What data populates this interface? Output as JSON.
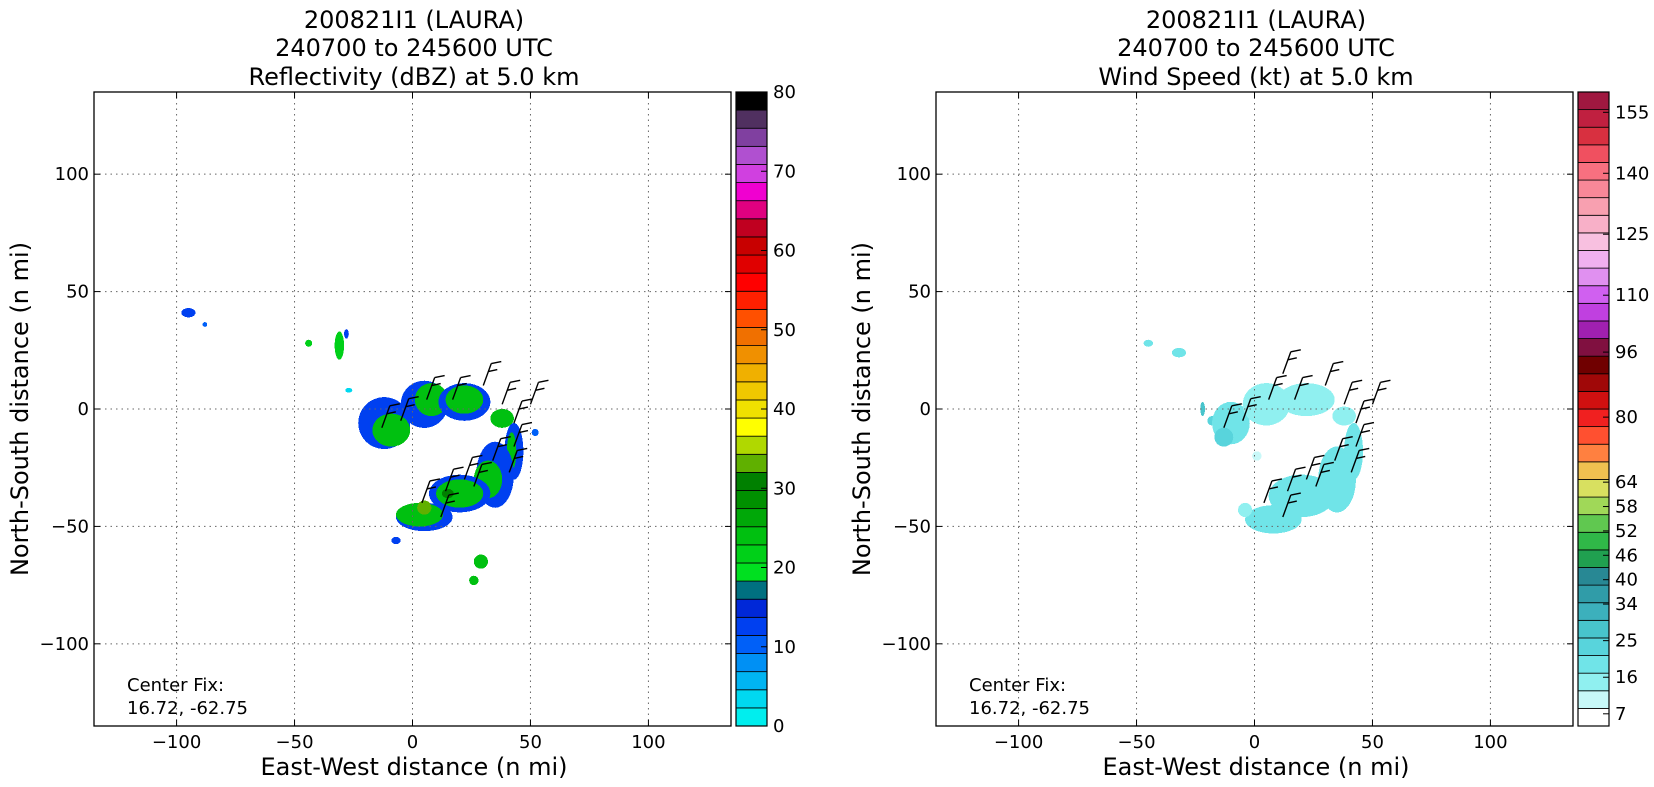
{
  "chart_data": [
    {
      "type": "heatmap",
      "title_lines": [
        "200821I1 (LAURA)",
        "240700 to 245600 UTC",
        "Reflectivity (dBZ) at 5.0 km"
      ],
      "xlabel": "East-West distance (n mi)",
      "ylabel": "North-South distance (n mi)",
      "xlim": [
        -135,
        135
      ],
      "ylim": [
        -135,
        135
      ],
      "xticks": [
        -100,
        -50,
        0,
        50,
        100
      ],
      "yticks": [
        -100,
        -50,
        0,
        50,
        100
      ],
      "grid": true,
      "annotation_lines": [
        "Center Fix:",
        "16.72, -62.75"
      ],
      "colorbar": {
        "min": 0,
        "max": 80,
        "tick_values": [
          0,
          10,
          20,
          30,
          40,
          50,
          60,
          70,
          80
        ],
        "tick_labels": [
          "0",
          "10",
          "20",
          "30",
          "40",
          "50",
          "60",
          "70",
          "80"
        ],
        "colors": [
          "#00eeee",
          "#00d8f0",
          "#00b4f2",
          "#0090f4",
          "#0060f8",
          "#0040f0",
          "#0028d8",
          "#007080",
          "#00e020",
          "#00d018",
          "#00c010",
          "#00a808",
          "#009000",
          "#008000",
          "#60b000",
          "#b0d800",
          "#ffff00",
          "#f0e000",
          "#f0c800",
          "#f0b000",
          "#f09000",
          "#f07000",
          "#ff5000",
          "#ff2000",
          "#ff0000",
          "#e00000",
          "#c80000",
          "#c00020",
          "#e00080",
          "#f000d0",
          "#d040e0",
          "#b050d0",
          "#8040a0",
          "#503060",
          "#000000"
        ]
      },
      "field_blobs": [
        {
          "x": -95,
          "y": 41,
          "rx": 3,
          "ry": 2,
          "v": 12
        },
        {
          "x": -88,
          "y": 36,
          "rx": 1,
          "ry": 1,
          "v": 11
        },
        {
          "x": -44,
          "y": 28,
          "rx": 1.5,
          "ry": 1.5,
          "v": 22
        },
        {
          "x": -31,
          "y": 27,
          "rx": 2,
          "ry": 6,
          "v": 22
        },
        {
          "x": -28,
          "y": 32,
          "rx": 1,
          "ry": 2,
          "v": 12
        },
        {
          "x": -27,
          "y": 8,
          "rx": 1.5,
          "ry": 1,
          "v": 4
        },
        {
          "x": -12,
          "y": -6,
          "rx": 11,
          "ry": 11,
          "v": 12
        },
        {
          "x": -9,
          "y": -9,
          "rx": 8,
          "ry": 7,
          "v": 24
        },
        {
          "x": 5,
          "y": 2,
          "rx": 10,
          "ry": 10,
          "v": 12
        },
        {
          "x": 8,
          "y": 4,
          "rx": 7,
          "ry": 7,
          "v": 24
        },
        {
          "x": 22,
          "y": 3,
          "rx": 11,
          "ry": 8,
          "v": 13
        },
        {
          "x": 22,
          "y": 4,
          "rx": 8,
          "ry": 6,
          "v": 24
        },
        {
          "x": 38,
          "y": -4,
          "rx": 5,
          "ry": 4,
          "v": 24
        },
        {
          "x": 43,
          "y": -18,
          "rx": 4,
          "ry": 12,
          "v": 12
        },
        {
          "x": 42,
          "y": -18,
          "rx": 2,
          "ry": 8,
          "v": 24
        },
        {
          "x": 52,
          "y": -10,
          "rx": 1.5,
          "ry": 1.5,
          "v": 10
        },
        {
          "x": 35,
          "y": -28,
          "rx": 8,
          "ry": 14,
          "v": 12
        },
        {
          "x": 32,
          "y": -30,
          "rx": 6,
          "ry": 8,
          "v": 24
        },
        {
          "x": 20,
          "y": -36,
          "rx": 13,
          "ry": 8,
          "v": 12
        },
        {
          "x": 20,
          "y": -36,
          "rx": 10,
          "ry": 6,
          "v": 24
        },
        {
          "x": 5,
          "y": -46,
          "rx": 12,
          "ry": 6,
          "v": 12
        },
        {
          "x": 3,
          "y": -45,
          "rx": 10,
          "ry": 5,
          "v": 24
        },
        {
          "x": 5,
          "y": -42,
          "rx": 3,
          "ry": 3,
          "v": 34
        },
        {
          "x": 15,
          "y": -36,
          "rx": 2.5,
          "ry": 2,
          "v": 31
        },
        {
          "x": -7,
          "y": -56,
          "rx": 2,
          "ry": 1.5,
          "v": 12
        },
        {
          "x": 29,
          "y": -65,
          "rx": 3,
          "ry": 3,
          "v": 23
        },
        {
          "x": 26,
          "y": -73,
          "rx": 2,
          "ry": 2,
          "v": 23
        }
      ],
      "wind_barbs": [
        {
          "x": -5,
          "y": -5
        },
        {
          "x": 6,
          "y": 4
        },
        {
          "x": 17,
          "y": 4
        },
        {
          "x": 30,
          "y": 10
        },
        {
          "x": 38,
          "y": 2
        },
        {
          "x": 43,
          "y": -6
        },
        {
          "x": 50,
          "y": 2
        },
        {
          "x": 43,
          "y": -16
        },
        {
          "x": 41,
          "y": -27
        },
        {
          "x": 34,
          "y": -22
        },
        {
          "x": 22,
          "y": -30
        },
        {
          "x": 14,
          "y": -35
        },
        {
          "x": 4,
          "y": -40
        },
        {
          "x": 12,
          "y": -46
        },
        {
          "x": 26,
          "y": -33
        },
        {
          "x": -13,
          "y": -8
        }
      ]
    },
    {
      "type": "heatmap",
      "title_lines": [
        "200821I1 (LAURA)",
        "240700 to 245600 UTC",
        "Wind Speed (kt) at 5.0 km"
      ],
      "xlabel": "East-West distance (n mi)",
      "ylabel": "North-South distance (n mi)",
      "xlim": [
        -135,
        135
      ],
      "ylim": [
        -135,
        135
      ],
      "xticks": [
        -100,
        -50,
        0,
        50,
        100
      ],
      "yticks": [
        -100,
        -50,
        0,
        50,
        100
      ],
      "grid": true,
      "annotation_lines": [
        "Center Fix:",
        "16.72, -62.75"
      ],
      "colorbar": {
        "min": 4,
        "max": 160,
        "tick_values": [
          7,
          16,
          25,
          34,
          40,
          46,
          52,
          58,
          64,
          80,
          96,
          110,
          125,
          140,
          155
        ],
        "tick_labels": [
          "7",
          "16",
          "25",
          "34",
          "40",
          "46",
          "52",
          "58",
          "64",
          "80",
          "96",
          "110",
          "125",
          "140",
          "155"
        ],
        "colors": [
          "#ffffff",
          "#c8f8f8",
          "#90f0f0",
          "#70e4e8",
          "#58d4dc",
          "#48c4cc",
          "#3cb0bc",
          "#309ca8",
          "#288894",
          "#20a050",
          "#30b848",
          "#60c850",
          "#a0d858",
          "#d8e060",
          "#f0c050",
          "#ff8040",
          "#ff5030",
          "#f02020",
          "#d01010",
          "#a00808",
          "#700000",
          "#801040",
          "#a020b0",
          "#c040e0",
          "#d060f0",
          "#e090f0",
          "#f0b0f0",
          "#f8c0e0",
          "#f8b0c8",
          "#f8a0b0",
          "#f88898",
          "#f87080",
          "#f05060",
          "#d83040",
          "#c02040",
          "#a01840"
        ]
      },
      "field_blobs": [
        {
          "x": -45,
          "y": 28,
          "rx": 2,
          "ry": 1.5,
          "v": 18
        },
        {
          "x": -32,
          "y": 24,
          "rx": 3,
          "ry": 2,
          "v": 20
        },
        {
          "x": -22,
          "y": 0,
          "rx": 1,
          "ry": 3,
          "v": 28
        },
        {
          "x": -18,
          "y": -5,
          "rx": 2,
          "ry": 2,
          "v": 22
        },
        {
          "x": -10,
          "y": -6,
          "rx": 8,
          "ry": 9,
          "v": 18
        },
        {
          "x": -13,
          "y": -12,
          "rx": 4,
          "ry": 4,
          "v": 24
        },
        {
          "x": 5,
          "y": 2,
          "rx": 10,
          "ry": 9,
          "v": 16
        },
        {
          "x": 22,
          "y": 4,
          "rx": 12,
          "ry": 7,
          "v": 15
        },
        {
          "x": 38,
          "y": -3,
          "rx": 5,
          "ry": 4,
          "v": 16
        },
        {
          "x": 42,
          "y": -18,
          "rx": 4,
          "ry": 12,
          "v": 18
        },
        {
          "x": 35,
          "y": -30,
          "rx": 8,
          "ry": 14,
          "v": 20
        },
        {
          "x": 20,
          "y": -37,
          "rx": 14,
          "ry": 9,
          "v": 20
        },
        {
          "x": 8,
          "y": -47,
          "rx": 12,
          "ry": 6,
          "v": 18
        },
        {
          "x": -4,
          "y": -43,
          "rx": 3,
          "ry": 3,
          "v": 14
        },
        {
          "x": 1,
          "y": -20,
          "rx": 2,
          "ry": 2,
          "v": 12
        }
      ],
      "wind_barbs": [
        {
          "x": -5,
          "y": -5
        },
        {
          "x": 6,
          "y": 4
        },
        {
          "x": 17,
          "y": 4
        },
        {
          "x": 30,
          "y": 10
        },
        {
          "x": 38,
          "y": 2
        },
        {
          "x": 43,
          "y": -6
        },
        {
          "x": 50,
          "y": 2
        },
        {
          "x": 43,
          "y": -16
        },
        {
          "x": 41,
          "y": -27
        },
        {
          "x": 34,
          "y": -22
        },
        {
          "x": 22,
          "y": -30
        },
        {
          "x": 14,
          "y": -35
        },
        {
          "x": 4,
          "y": -40
        },
        {
          "x": 12,
          "y": -46
        },
        {
          "x": 26,
          "y": -33
        },
        {
          "x": -13,
          "y": -8
        },
        {
          "x": 12,
          "y": 15
        }
      ]
    }
  ]
}
